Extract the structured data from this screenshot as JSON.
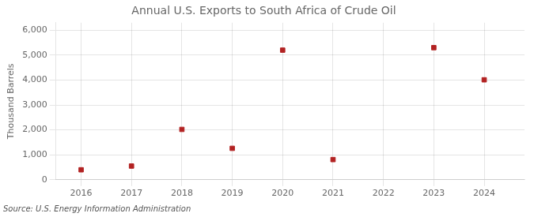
{
  "chart_data": {
    "type": "scatter",
    "title": "Annual U.S. Exports to South Africa of Crude Oil",
    "ylabel": "Thousand Barrels",
    "source": "Source: U.S. Energy Information Administration",
    "x": [
      2016,
      2017,
      2018,
      2019,
      2020,
      2021,
      2023,
      2024
    ],
    "values": [
      400,
      550,
      2020,
      1260,
      5200,
      810,
      5300,
      4010
    ],
    "color": "#b22222",
    "marker": "square",
    "xlim": [
      2015.5,
      2024.8
    ],
    "xticks": [
      2016,
      2017,
      2018,
      2019,
      2020,
      2021,
      2022,
      2023,
      2024
    ],
    "ylim": [
      0,
      6300
    ],
    "yticks": [
      0,
      {
        "value": 1000,
        "label": "1,000"
      },
      {
        "value": 2000,
        "label": "2,000"
      },
      {
        "value": 3000,
        "label": "3,000"
      },
      {
        "value": 4000,
        "label": "4,000"
      },
      {
        "value": 5000,
        "label": "5,000"
      },
      {
        "value": 6000,
        "label": "6,000"
      }
    ],
    "grid": true
  }
}
